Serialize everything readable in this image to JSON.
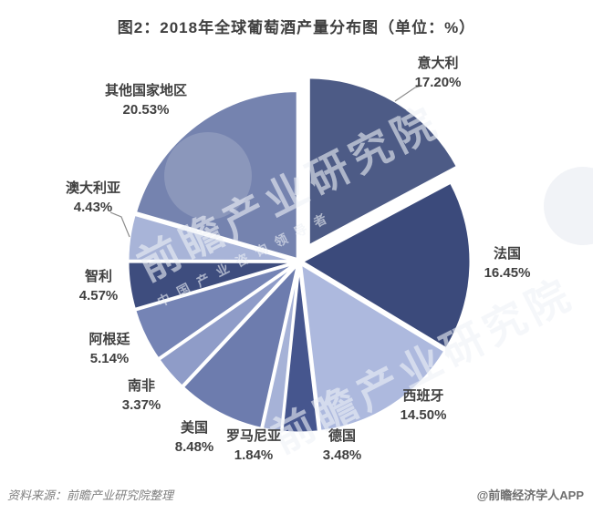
{
  "header": {
    "title": "图2：2018年全球葡萄酒产量分布图（单位：%）"
  },
  "chart_data": {
    "type": "pie",
    "title": "图2：2018年全球葡萄酒产量分布图（单位：%）",
    "unit": "%",
    "start_angle_deg": 0,
    "direction": "clockwise",
    "exploded_slice": "意大利",
    "legend_position": "none",
    "labels_outside": true,
    "points": [
      {
        "id": "italy",
        "name": "意大利",
        "value": 17.2,
        "pct_label": "17.20%",
        "color": "#4D5B86",
        "exploded": true
      },
      {
        "id": "france",
        "name": "法国",
        "value": 16.45,
        "pct_label": "16.45%",
        "color": "#3B4A7B"
      },
      {
        "id": "spain",
        "name": "西班牙",
        "value": 14.5,
        "pct_label": "14.50%",
        "color": "#ADB9DE"
      },
      {
        "id": "germany",
        "name": "德国",
        "value": 3.48,
        "pct_label": "3.48%",
        "color": "#46568E"
      },
      {
        "id": "romania",
        "name": "罗马尼亚",
        "value": 1.84,
        "pct_label": "1.84%",
        "color": "#A6B2D7"
      },
      {
        "id": "usa",
        "name": "美国",
        "value": 8.48,
        "pct_label": "8.48%",
        "color": "#6D7CAE"
      },
      {
        "id": "south-africa",
        "name": "南非",
        "value": 3.37,
        "pct_label": "3.37%",
        "color": "#8F9CC8"
      },
      {
        "id": "argentina",
        "name": "阿根廷",
        "value": 5.14,
        "pct_label": "5.14%",
        "color": "#7584B5"
      },
      {
        "id": "chile",
        "name": "智利",
        "value": 4.57,
        "pct_label": "4.57%",
        "color": "#3E4D7E"
      },
      {
        "id": "australia",
        "name": "澳大利亚",
        "value": 4.43,
        "pct_label": "4.43%",
        "color": "#A8B4D8"
      },
      {
        "id": "others",
        "name": "其他国家地区",
        "value": 20.53,
        "pct_label": "20.53%",
        "color": "#7583AF"
      }
    ]
  },
  "footer": {
    "source": "资料来源：前瞻产业研究院整理",
    "credit": "@前瞻经济学人APP"
  },
  "watermark": {
    "brand_text": "前瞻产业研究院",
    "brand_subtext": "中国产业咨询领导者"
  }
}
